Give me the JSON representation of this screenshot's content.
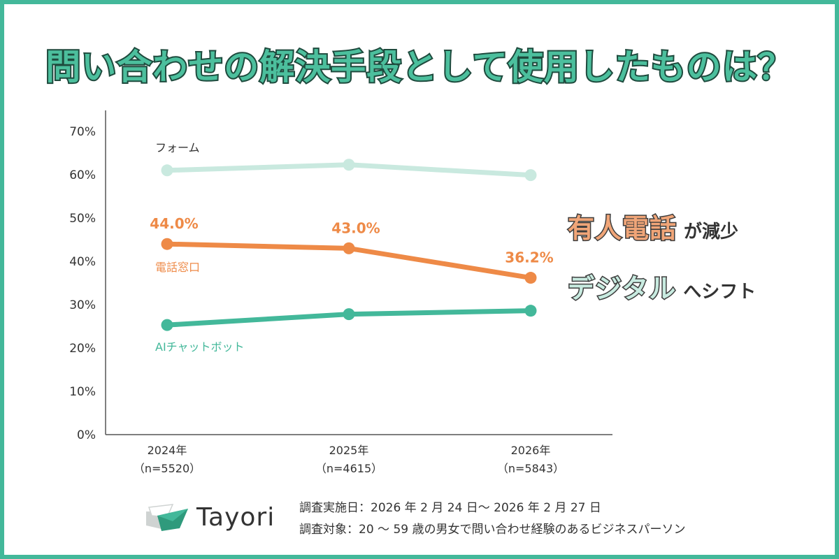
{
  "title": "問い合わせの解決手段として使用したものは？",
  "chart_data": {
    "type": "line",
    "title": "問い合わせの解決手段として使用したものは？",
    "categories": [
      {
        "year": "2024年",
        "n": "（n=5520）"
      },
      {
        "year": "2025年",
        "n": "（n=4615）"
      },
      {
        "year": "2026年",
        "n": "（n=5843）"
      }
    ],
    "ylim": [
      0,
      70
    ],
    "yticks": [
      {
        "value": 0,
        "label": "0%"
      },
      {
        "value": 10,
        "label": "10%"
      },
      {
        "value": 20,
        "label": "20%"
      },
      {
        "value": 30,
        "label": "30%"
      },
      {
        "value": 40,
        "label": "40%"
      },
      {
        "value": 50,
        "label": "50%"
      },
      {
        "value": 60,
        "label": "60%"
      },
      {
        "value": 70,
        "label": "70%"
      }
    ],
    "series": [
      {
        "name": "フォーム",
        "values": [
          61.0,
          62.3,
          59.9
        ],
        "color": "#c9e9df",
        "label_color": "#333333",
        "data_labels": []
      },
      {
        "name": "電話窓口",
        "values": [
          44.0,
          43.0,
          36.2
        ],
        "color": "#ee8a47",
        "label_color": "#ee8a47",
        "data_labels": [
          "44.0%",
          "43.0%",
          "36.2%"
        ]
      },
      {
        "name": "AIチャットボット",
        "values": [
          25.3,
          27.8,
          28.6
        ],
        "color": "#43b89a",
        "label_color": "#43b89a",
        "data_labels": []
      }
    ]
  },
  "callouts": [
    {
      "big": "有人電話",
      "small": "が減少"
    },
    {
      "big": "デジタル",
      "small": "へシフト"
    }
  ],
  "logo": {
    "text": "Tayori"
  },
  "survey": {
    "date": "調査実施日：2026 年 2 月 24 日～ 2026 年 2 月 27 日",
    "target": "調査対象：20 ～ 59 歳の男女で問い合わせ経験のあるビジネスパーソン"
  },
  "colors": {
    "frame": "#43b89a",
    "title": "#4cbf9d",
    "phone": "#ee8a47",
    "ai": "#43b89a",
    "form": "#c9e9df"
  }
}
